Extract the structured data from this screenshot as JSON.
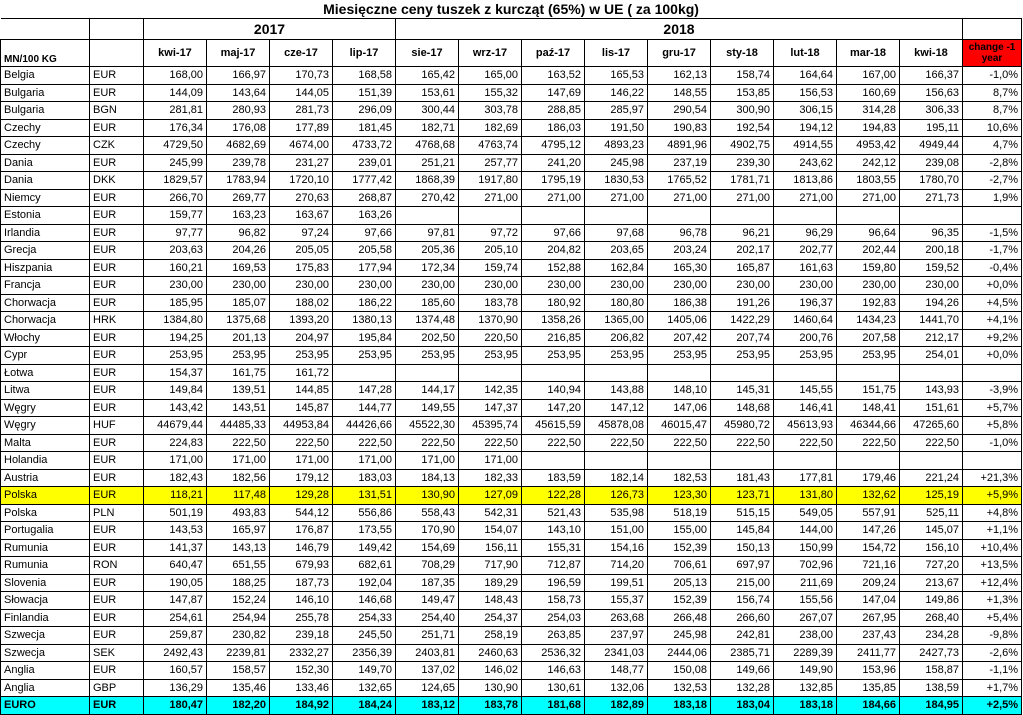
{
  "title": "Miesięczne ceny tuszek z kurcząt (65%) w UE ( za 100kg)",
  "years": {
    "y2017": "2017",
    "y2018": "2018"
  },
  "header": {
    "unit": "MN/100 KG",
    "months": [
      "kwi-17",
      "maj-17",
      "cze-17",
      "lip-17",
      "sie-17",
      "wrz-17",
      "paź-17",
      "lis-17",
      "gru-17",
      "sty-18",
      "lut-18",
      "mar-18",
      "kwi-18"
    ],
    "change": "change -1 year"
  },
  "highlight_colors": {
    "polska": "#ffff00",
    "euro": "#00ffff",
    "change_header": "#ff0000"
  },
  "rows": [
    {
      "country": "Belgia",
      "cur": "EUR",
      "v": [
        "168,00",
        "166,97",
        "170,73",
        "168,58",
        "165,42",
        "165,00",
        "163,52",
        "165,53",
        "162,13",
        "158,74",
        "164,64",
        "167,00",
        "166,37"
      ],
      "chg": "-1,0%"
    },
    {
      "country": "Bulgaria",
      "cur": "EUR",
      "v": [
        "144,09",
        "143,64",
        "144,05",
        "151,39",
        "153,61",
        "155,32",
        "147,69",
        "146,22",
        "148,55",
        "153,85",
        "156,53",
        "160,69",
        "156,63"
      ],
      "chg": "8,7%"
    },
    {
      "country": "Bulgaria",
      "cur": "BGN",
      "v": [
        "281,81",
        "280,93",
        "281,73",
        "296,09",
        "300,44",
        "303,78",
        "288,85",
        "285,97",
        "290,54",
        "300,90",
        "306,15",
        "314,28",
        "306,33"
      ],
      "chg": "8,7%"
    },
    {
      "country": "Czechy",
      "cur": "EUR",
      "v": [
        "176,34",
        "176,08",
        "177,89",
        "181,45",
        "182,71",
        "182,69",
        "186,03",
        "191,50",
        "190,83",
        "192,54",
        "194,12",
        "194,83",
        "195,11"
      ],
      "chg": "10,6%"
    },
    {
      "country": "Czechy",
      "cur": "CZK",
      "v": [
        "4729,50",
        "4682,69",
        "4674,00",
        "4733,72",
        "4768,68",
        "4763,74",
        "4795,12",
        "4893,23",
        "4891,96",
        "4902,75",
        "4914,55",
        "4953,42",
        "4949,44"
      ],
      "chg": "4,7%"
    },
    {
      "country": "Dania",
      "cur": "EUR",
      "v": [
        "245,99",
        "239,78",
        "231,27",
        "239,01",
        "251,21",
        "257,77",
        "241,20",
        "245,98",
        "237,19",
        "239,30",
        "243,62",
        "242,12",
        "239,08"
      ],
      "chg": "-2,8%"
    },
    {
      "country": "Dania",
      "cur": "DKK",
      "v": [
        "1829,57",
        "1783,94",
        "1720,10",
        "1777,42",
        "1868,39",
        "1917,80",
        "1795,19",
        "1830,53",
        "1765,52",
        "1781,71",
        "1813,86",
        "1803,55",
        "1780,70"
      ],
      "chg": "-2,7%"
    },
    {
      "country": "Niemcy",
      "cur": "EUR",
      "v": [
        "266,70",
        "269,77",
        "270,63",
        "268,87",
        "270,42",
        "271,00",
        "271,00",
        "271,00",
        "271,00",
        "271,00",
        "271,00",
        "271,00",
        "271,73"
      ],
      "chg": "1,9%"
    },
    {
      "country": "Estonia",
      "cur": "EUR",
      "v": [
        "159,77",
        "163,23",
        "163,67",
        "163,26",
        "",
        "",
        "",
        "",
        "",
        "",
        "",
        "",
        ""
      ],
      "chg": ""
    },
    {
      "country": "Irlandia",
      "cur": "EUR",
      "v": [
        "97,77",
        "96,82",
        "97,24",
        "97,66",
        "97,81",
        "97,72",
        "97,66",
        "97,68",
        "96,78",
        "96,21",
        "96,29",
        "96,64",
        "96,35"
      ],
      "chg": "-1,5%"
    },
    {
      "country": "Grecja",
      "cur": "EUR",
      "v": [
        "203,63",
        "204,26",
        "205,05",
        "205,58",
        "205,36",
        "205,10",
        "204,82",
        "203,65",
        "203,24",
        "202,17",
        "202,77",
        "202,44",
        "200,18"
      ],
      "chg": "-1,7%"
    },
    {
      "country": "Hiszpania",
      "cur": "EUR",
      "v": [
        "160,21",
        "169,53",
        "175,83",
        "177,94",
        "172,34",
        "159,74",
        "152,88",
        "162,84",
        "165,30",
        "165,87",
        "161,63",
        "159,80",
        "159,52"
      ],
      "chg": "-0,4%"
    },
    {
      "country": "Francja",
      "cur": "EUR",
      "v": [
        "230,00",
        "230,00",
        "230,00",
        "230,00",
        "230,00",
        "230,00",
        "230,00",
        "230,00",
        "230,00",
        "230,00",
        "230,00",
        "230,00",
        "230,00"
      ],
      "chg": "+0,0%"
    },
    {
      "country": "Chorwacja",
      "cur": "EUR",
      "v": [
        "185,95",
        "185,07",
        "188,02",
        "186,22",
        "185,60",
        "183,78",
        "180,92",
        "180,80",
        "186,38",
        "191,26",
        "196,37",
        "192,83",
        "194,26"
      ],
      "chg": "+4,5%"
    },
    {
      "country": "Chorwacja",
      "cur": "HRK",
      "v": [
        "1384,80",
        "1375,68",
        "1393,20",
        "1380,13",
        "1374,48",
        "1370,90",
        "1358,26",
        "1365,00",
        "1405,06",
        "1422,29",
        "1460,64",
        "1434,23",
        "1441,70"
      ],
      "chg": "+4,1%"
    },
    {
      "country": "Włochy",
      "cur": "EUR",
      "v": [
        "194,25",
        "201,13",
        "204,97",
        "195,84",
        "202,50",
        "220,50",
        "216,85",
        "206,82",
        "207,42",
        "207,74",
        "200,76",
        "207,58",
        "212,17"
      ],
      "chg": "+9,2%"
    },
    {
      "country": "Cypr",
      "cur": "EUR",
      "v": [
        "253,95",
        "253,95",
        "253,95",
        "253,95",
        "253,95",
        "253,95",
        "253,95",
        "253,95",
        "253,95",
        "253,95",
        "253,95",
        "253,95",
        "254,01"
      ],
      "chg": "+0,0%"
    },
    {
      "country": "Łotwa",
      "cur": "EUR",
      "v": [
        "154,37",
        "161,75",
        "161,72",
        "",
        "",
        "",
        "",
        "",
        "",
        "",
        "",
        "",
        ""
      ],
      "chg": ""
    },
    {
      "country": "Litwa",
      "cur": "EUR",
      "v": [
        "149,84",
        "139,51",
        "144,85",
        "147,28",
        "144,17",
        "142,35",
        "140,94",
        "143,88",
        "148,10",
        "145,31",
        "145,55",
        "151,75",
        "143,93"
      ],
      "chg": "-3,9%"
    },
    {
      "country": "Węgry",
      "cur": "EUR",
      "v": [
        "143,42",
        "143,51",
        "145,87",
        "144,77",
        "149,55",
        "147,37",
        "147,20",
        "147,12",
        "147,06",
        "148,68",
        "146,41",
        "148,41",
        "151,61"
      ],
      "chg": "+5,7%"
    },
    {
      "country": "Węgry",
      "cur": "HUF",
      "v": [
        "44679,44",
        "44485,33",
        "44953,84",
        "44426,66",
        "45522,30",
        "45395,74",
        "45615,59",
        "45878,08",
        "46015,47",
        "45980,72",
        "45613,93",
        "46344,66",
        "47265,60"
      ],
      "chg": "+5,8%"
    },
    {
      "country": "Malta",
      "cur": "EUR",
      "v": [
        "224,83",
        "222,50",
        "222,50",
        "222,50",
        "222,50",
        "222,50",
        "222,50",
        "222,50",
        "222,50",
        "222,50",
        "222,50",
        "222,50",
        "222,50"
      ],
      "chg": "-1,0%"
    },
    {
      "country": "Holandia",
      "cur": "EUR",
      "v": [
        "171,00",
        "171,00",
        "171,00",
        "171,00",
        "171,00",
        "171,00",
        "",
        "",
        "",
        "",
        "",
        "",
        ""
      ],
      "chg": ""
    },
    {
      "country": "Austria",
      "cur": "EUR",
      "v": [
        "182,43",
        "182,56",
        "179,12",
        "183,03",
        "184,13",
        "182,33",
        "183,59",
        "182,14",
        "182,53",
        "181,43",
        "177,81",
        "179,46",
        "221,24"
      ],
      "chg": "+21,3%"
    },
    {
      "country": "Polska",
      "cur": "EUR",
      "v": [
        "118,21",
        "117,48",
        "129,28",
        "131,51",
        "130,90",
        "127,09",
        "122,28",
        "126,73",
        "123,30",
        "123,71",
        "131,80",
        "132,62",
        "125,19"
      ],
      "chg": "+5,9%",
      "hl": "polska"
    },
    {
      "country": "Polska",
      "cur": "PLN",
      "v": [
        "501,19",
        "493,83",
        "544,12",
        "556,86",
        "558,43",
        "542,31",
        "521,43",
        "535,98",
        "518,19",
        "515,15",
        "549,05",
        "557,91",
        "525,11"
      ],
      "chg": "+4,8%"
    },
    {
      "country": "Portugalia",
      "cur": "EUR",
      "v": [
        "143,53",
        "165,97",
        "176,87",
        "173,55",
        "170,90",
        "154,07",
        "143,10",
        "151,00",
        "155,00",
        "145,84",
        "144,00",
        "147,26",
        "145,07"
      ],
      "chg": "+1,1%"
    },
    {
      "country": "Rumunia",
      "cur": "EUR",
      "v": [
        "141,37",
        "143,13",
        "146,79",
        "149,42",
        "154,69",
        "156,11",
        "155,31",
        "154,16",
        "152,39",
        "150,13",
        "150,99",
        "154,72",
        "156,10"
      ],
      "chg": "+10,4%"
    },
    {
      "country": "Rumunia",
      "cur": "RON",
      "v": [
        "640,47",
        "651,55",
        "679,93",
        "682,61",
        "708,29",
        "717,90",
        "712,87",
        "714,20",
        "706,61",
        "697,97",
        "702,96",
        "721,16",
        "727,20"
      ],
      "chg": "+13,5%"
    },
    {
      "country": "Slovenia",
      "cur": "EUR",
      "v": [
        "190,05",
        "188,25",
        "187,73",
        "192,04",
        "187,35",
        "189,29",
        "196,59",
        "199,51",
        "205,13",
        "215,00",
        "211,69",
        "209,24",
        "213,67"
      ],
      "chg": "+12,4%"
    },
    {
      "country": "Słowacja",
      "cur": "EUR",
      "v": [
        "147,87",
        "152,24",
        "146,10",
        "146,68",
        "149,47",
        "148,43",
        "158,73",
        "155,37",
        "152,39",
        "156,74",
        "155,56",
        "147,04",
        "149,86"
      ],
      "chg": "+1,3%"
    },
    {
      "country": "Finlandia",
      "cur": "EUR",
      "v": [
        "254,61",
        "254,94",
        "255,78",
        "254,33",
        "254,40",
        "254,37",
        "254,03",
        "263,68",
        "266,48",
        "266,60",
        "267,07",
        "267,95",
        "268,40"
      ],
      "chg": "+5,4%"
    },
    {
      "country": "Szwecja",
      "cur": "EUR",
      "v": [
        "259,87",
        "230,82",
        "239,18",
        "245,50",
        "251,71",
        "258,19",
        "263,85",
        "237,97",
        "245,98",
        "242,81",
        "238,00",
        "237,43",
        "234,28"
      ],
      "chg": "-9,8%"
    },
    {
      "country": "Szwecja",
      "cur": "SEK",
      "v": [
        "2492,43",
        "2239,81",
        "2332,27",
        "2356,39",
        "2403,81",
        "2460,63",
        "2536,32",
        "2341,03",
        "2444,06",
        "2385,71",
        "2289,39",
        "2411,77",
        "2427,73"
      ],
      "chg": "-2,6%"
    },
    {
      "country": "Anglia",
      "cur": "EUR",
      "v": [
        "160,57",
        "158,57",
        "152,30",
        "149,70",
        "137,02",
        "146,02",
        "146,63",
        "148,77",
        "150,08",
        "149,66",
        "149,90",
        "153,96",
        "158,87"
      ],
      "chg": "-1,1%"
    },
    {
      "country": "Anglia",
      "cur": "GBP",
      "v": [
        "136,29",
        "135,46",
        "133,46",
        "132,65",
        "124,65",
        "130,90",
        "130,61",
        "132,06",
        "132,53",
        "132,28",
        "132,85",
        "135,85",
        "138,59"
      ],
      "chg": "+1,7%"
    },
    {
      "country": "EURO",
      "cur": "EUR",
      "v": [
        "180,47",
        "182,20",
        "184,92",
        "184,24",
        "183,12",
        "183,78",
        "181,68",
        "182,89",
        "183,18",
        "183,04",
        "183,18",
        "184,66",
        "184,95"
      ],
      "chg": "+2,5%",
      "hl": "euro"
    }
  ]
}
